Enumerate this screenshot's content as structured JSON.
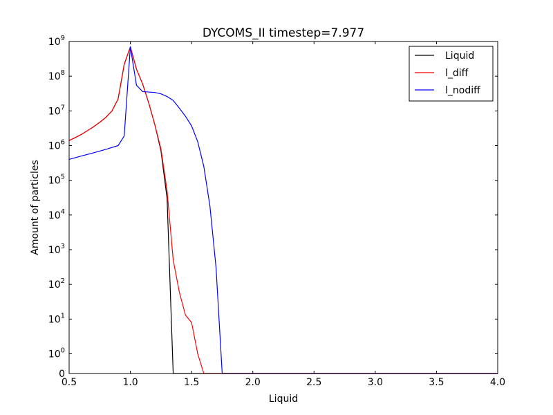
{
  "chart_data": {
    "type": "line",
    "title": "DYCOMS_II timestep=7.977",
    "xlabel": "Liquid",
    "ylabel": "Amount of particles",
    "xlim": [
      0.5,
      4.0
    ],
    "xscale": "linear",
    "yscale": "symlog",
    "symlog_linthresh": 1,
    "ylim": [
      0,
      1000000000
    ],
    "grid": false,
    "legend_position": "top-right",
    "x_ticks": [
      {
        "value": 0.5,
        "label": "0.5"
      },
      {
        "value": 1.0,
        "label": "1.0"
      },
      {
        "value": 1.5,
        "label": "1.5"
      },
      {
        "value": 2.0,
        "label": "2.0"
      },
      {
        "value": 2.5,
        "label": "2.5"
      },
      {
        "value": 3.0,
        "label": "3.0"
      },
      {
        "value": 3.5,
        "label": "3.5"
      },
      {
        "value": 4.0,
        "label": "4.0"
      }
    ],
    "y_ticks": [
      {
        "value": 0,
        "base": "0",
        "exp": ""
      },
      {
        "value": 1,
        "base": "10",
        "exp": "0"
      },
      {
        "value": 10,
        "base": "10",
        "exp": "1"
      },
      {
        "value": 100,
        "base": "10",
        "exp": "2"
      },
      {
        "value": 1000,
        "base": "10",
        "exp": "3"
      },
      {
        "value": 10000,
        "base": "10",
        "exp": "4"
      },
      {
        "value": 100000,
        "base": "10",
        "exp": "5"
      },
      {
        "value": 1000000,
        "base": "10",
        "exp": "6"
      },
      {
        "value": 10000000,
        "base": "10",
        "exp": "7"
      },
      {
        "value": 100000000,
        "base": "10",
        "exp": "8"
      },
      {
        "value": 1000000000,
        "base": "10",
        "exp": "9"
      }
    ],
    "series": [
      {
        "name": "Liquid",
        "color": "#000000",
        "x": [
          0.5,
          0.55,
          0.6,
          0.65,
          0.7,
          0.75,
          0.8,
          0.85,
          0.9,
          0.95,
          1.0,
          1.05,
          1.1,
          1.15,
          1.2,
          1.25,
          1.3,
          1.35,
          1.4,
          1.45,
          1.5,
          1.6,
          1.8,
          2.0,
          2.5,
          3.0,
          3.5,
          4.0
        ],
        "y": [
          1400000,
          1700000,
          2100000,
          2700000,
          3500000,
          4700000,
          6500000,
          10000000,
          22000000,
          220000000,
          700000000,
          160000000,
          60000000,
          17000000,
          4000000,
          700000,
          30000,
          0,
          0,
          0,
          0,
          0,
          0,
          0,
          0,
          0,
          0,
          0
        ]
      },
      {
        "name": "l_diff",
        "color": "#ff0000",
        "x": [
          0.5,
          0.55,
          0.6,
          0.65,
          0.7,
          0.75,
          0.8,
          0.85,
          0.9,
          0.95,
          1.0,
          1.05,
          1.1,
          1.15,
          1.2,
          1.25,
          1.3,
          1.35,
          1.4,
          1.45,
          1.5,
          1.55,
          1.6,
          1.8,
          2.0,
          2.5,
          3.0,
          3.5,
          4.0
        ],
        "y": [
          1400000,
          1700000,
          2100000,
          2700000,
          3500000,
          4700000,
          6500000,
          10000000,
          22000000,
          220000000,
          700000000,
          160000000,
          60000000,
          17000000,
          4000000,
          800000,
          50000,
          500,
          60,
          13,
          8,
          1,
          0,
          0,
          0,
          0,
          0,
          0,
          0
        ]
      },
      {
        "name": "l_nodiff",
        "color": "#0000ff",
        "x": [
          0.5,
          0.6,
          0.7,
          0.8,
          0.9,
          0.95,
          1.0,
          1.05,
          1.1,
          1.15,
          1.2,
          1.25,
          1.3,
          1.35,
          1.4,
          1.45,
          1.5,
          1.55,
          1.6,
          1.65,
          1.7,
          1.75,
          1.8,
          2.0,
          2.5,
          3.0,
          3.5,
          4.0
        ],
        "y": [
          400000,
          500000,
          620000,
          780000,
          1000000,
          1900000,
          700000000,
          55000000,
          36000000,
          35000000,
          34000000,
          31000000,
          26000000,
          20000000,
          12000000,
          7000000,
          3700000,
          1300000,
          250000,
          18000,
          300,
          0,
          0,
          0,
          0,
          0,
          0,
          0
        ]
      }
    ]
  }
}
